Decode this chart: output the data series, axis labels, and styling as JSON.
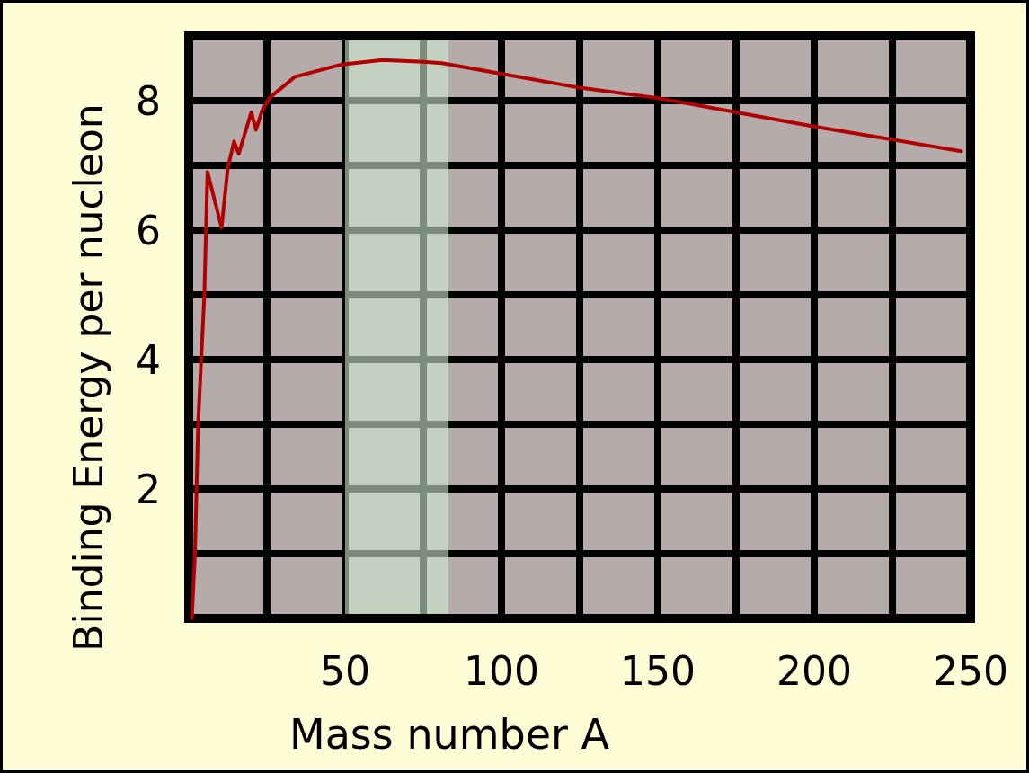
{
  "chart_data": {
    "type": "line",
    "xlabel": "Mass number A",
    "ylabel": "Binding Energy per nucleon",
    "xlim": [
      0,
      250
    ],
    "ylim": [
      0,
      9
    ],
    "xticks": [
      {
        "value": 25,
        "label": null
      },
      50,
      {
        "value": 75,
        "label": null
      },
      100,
      {
        "value": 125,
        "label": null
      },
      150,
      {
        "value": 175,
        "label": null
      },
      200,
      {
        "value": 225,
        "label": null
      },
      250
    ],
    "yticks": [
      {
        "value": 1,
        "label": null
      },
      2,
      {
        "value": 3,
        "label": null
      },
      4,
      {
        "value": 5,
        "label": null
      },
      6,
      {
        "value": 7,
        "label": null
      },
      8
    ],
    "grid": true,
    "line_style": "solid",
    "marker": "none",
    "bands": [
      {
        "axis": "x",
        "from": 50,
        "to": 83,
        "color": "#cfeacf"
      }
    ],
    "series": [
      {
        "color": "#b00000",
        "x": [
          1,
          2,
          2.5,
          3,
          4,
          5,
          6,
          10.5,
          12.5,
          14.5,
          16,
          20,
          21.5,
          23.5,
          26,
          34,
          49,
          62,
          75,
          81,
          125,
          150,
          200,
          247
        ],
        "values": [
          0,
          1,
          2,
          3,
          4,
          5,
          6.9,
          6.04,
          6.96,
          7.37,
          7.18,
          7.82,
          7.55,
          7.85,
          8.05,
          8.37,
          8.56,
          8.63,
          8.6,
          8.58,
          8.2,
          8.04,
          7.6,
          7.22
        ]
      }
    ]
  }
}
